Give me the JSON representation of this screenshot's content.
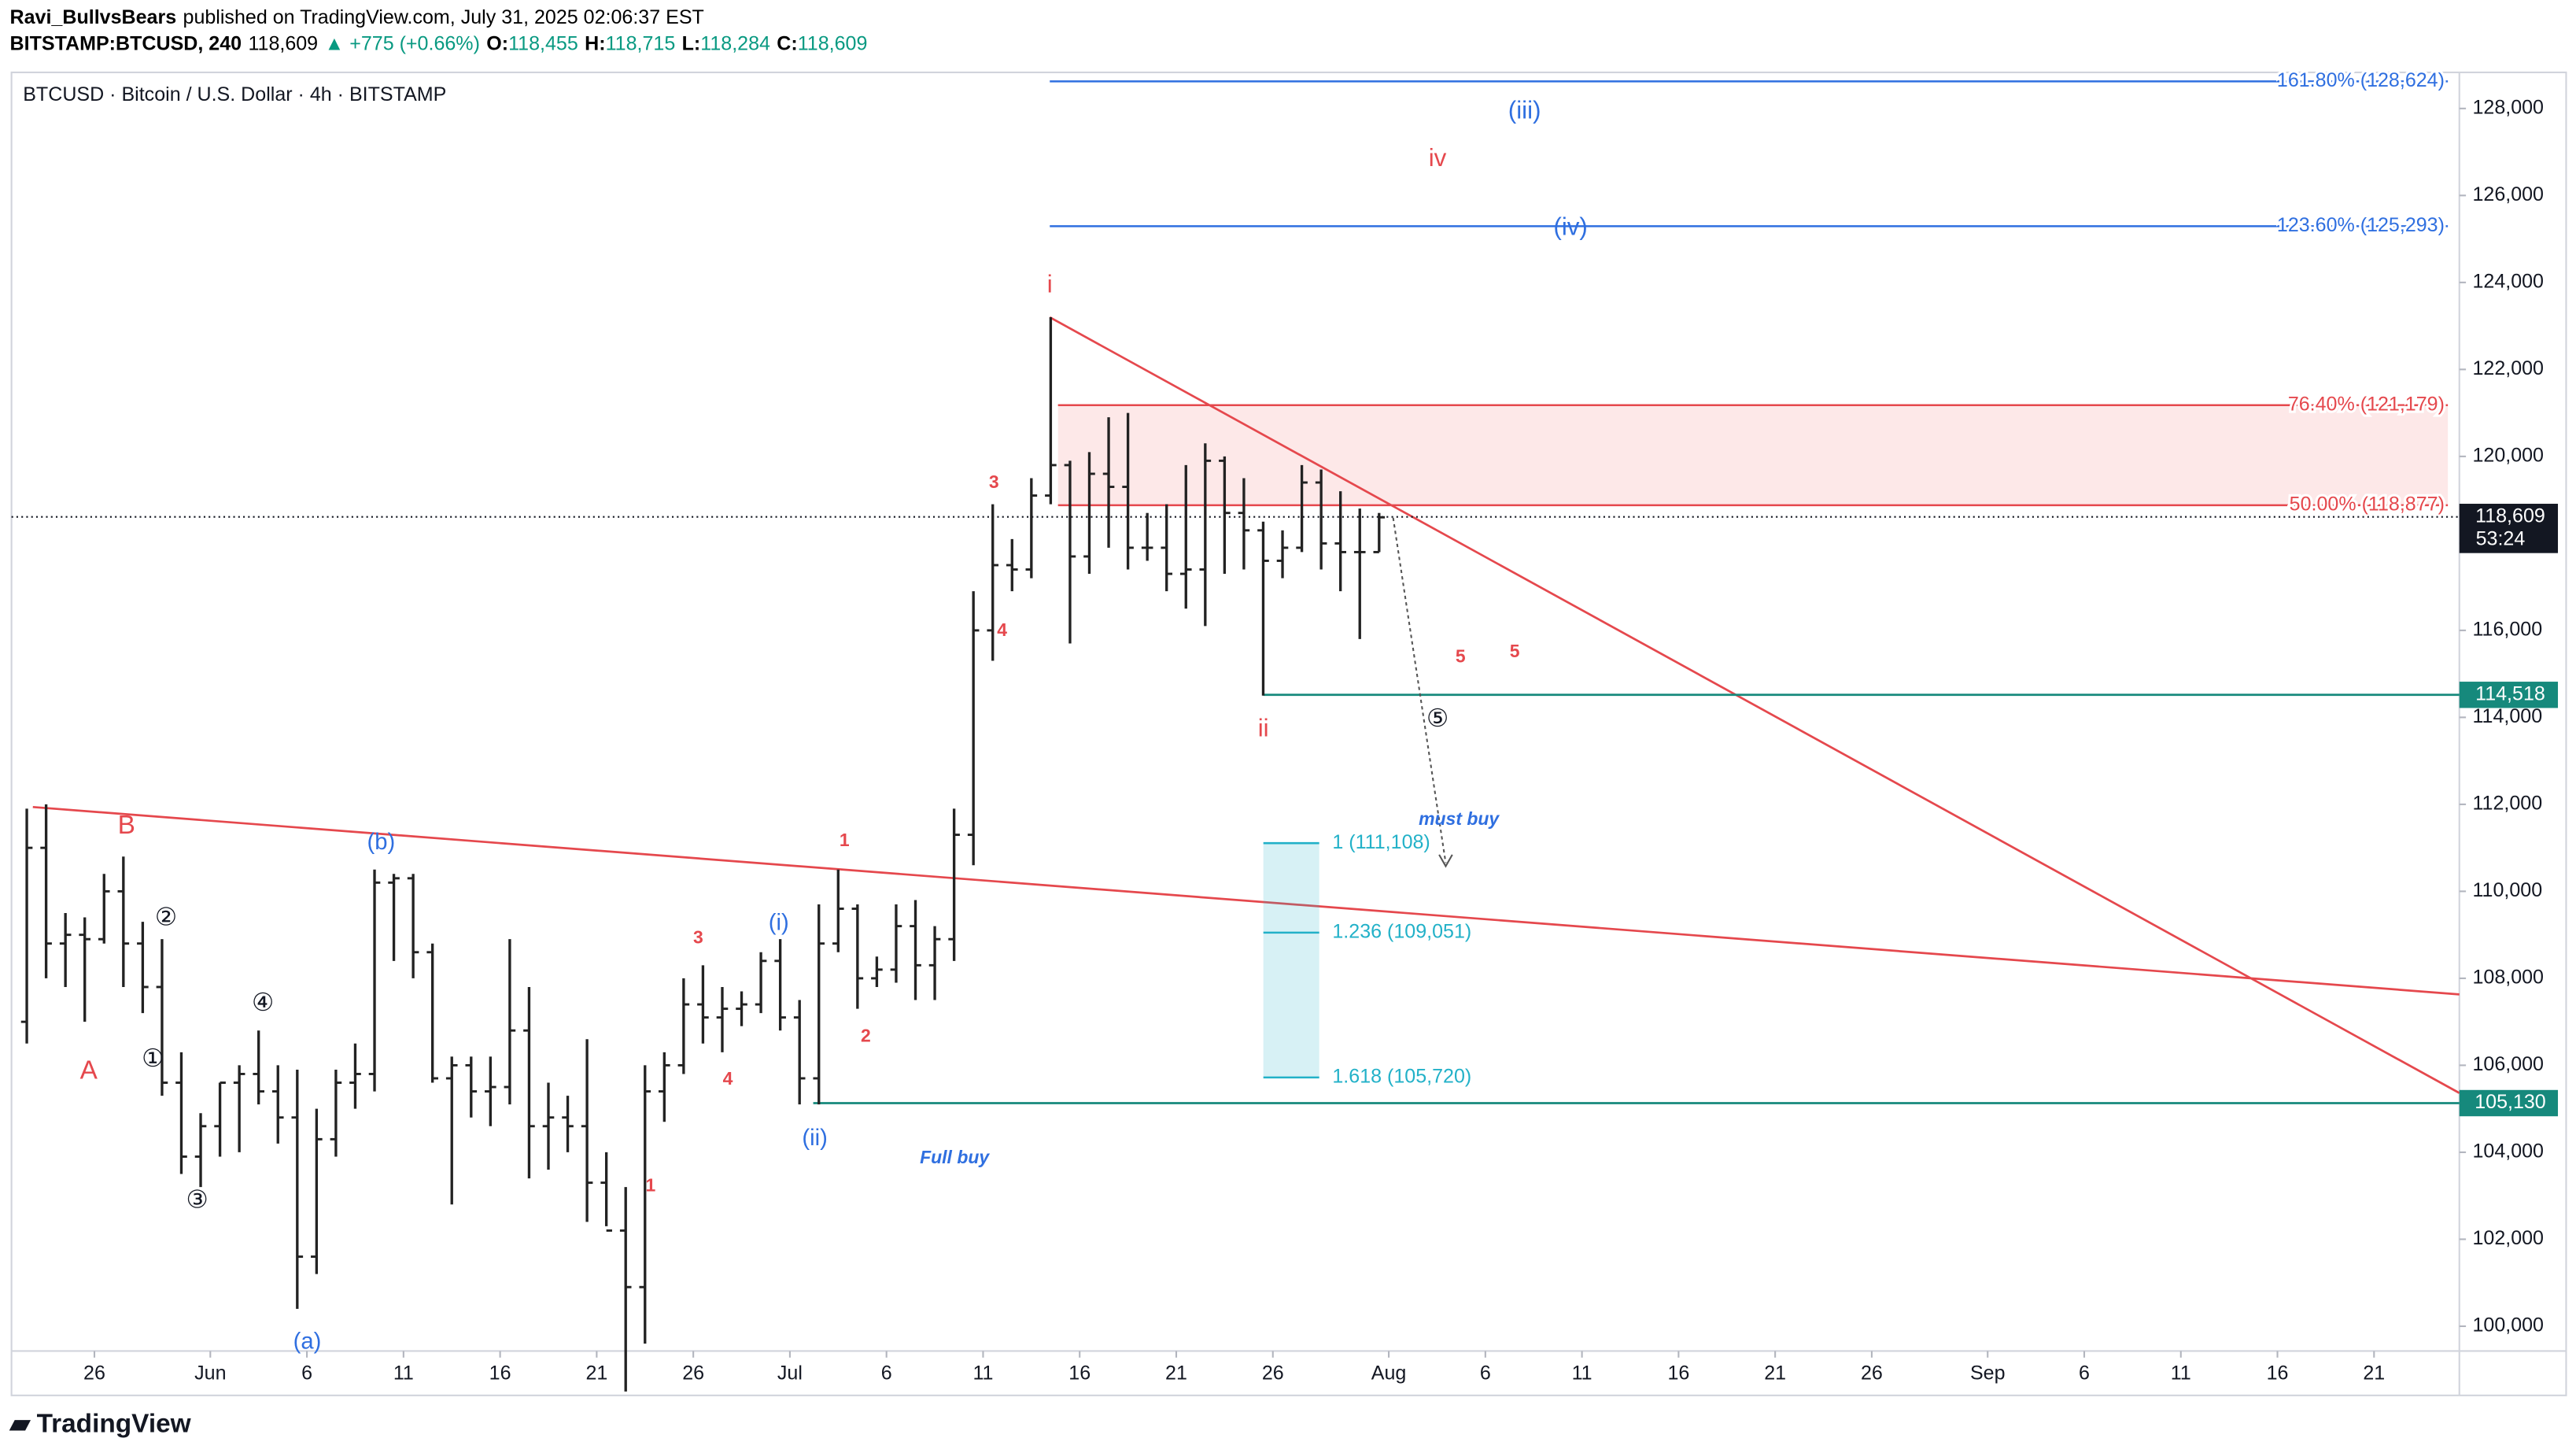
{
  "header": {
    "author": "Ravi_BullvsBears",
    "published": "published on TradingView.com, July 31, 2025 02:06:37 EST",
    "symbol": "BITSTAMP:BTCUSD, 240",
    "price": "118,609",
    "change": "▲ +775 (+0.66%)",
    "quote": [
      {
        "k": "O:",
        "v": "118,455"
      },
      {
        "k": "H:",
        "v": "118,715"
      },
      {
        "k": "L:",
        "v": "118,284"
      },
      {
        "k": "C:",
        "v": "118,609"
      }
    ]
  },
  "footer": {
    "brand": "TradingView"
  },
  "chart_data": {
    "type": "ohlc",
    "title": "BTCUSD · Bitcoin / U.S. Dollar · 4h · BITSTAMP",
    "x": [
      "2025-05-22",
      "2025-05-23",
      "2025-05-24",
      "2025-05-25",
      "2025-05-26",
      "2025-05-27",
      "2025-05-28",
      "2025-05-29",
      "2025-05-30",
      "2025-05-31",
      "2025-06-01",
      "2025-06-02",
      "2025-06-03",
      "2025-06-04",
      "2025-06-05",
      "2025-06-06",
      "2025-06-07",
      "2025-06-08",
      "2025-06-09",
      "2025-06-10",
      "2025-06-11",
      "2025-06-12",
      "2025-06-13",
      "2025-06-14",
      "2025-06-15",
      "2025-06-16",
      "2025-06-17",
      "2025-06-18",
      "2025-06-19",
      "2025-06-20",
      "2025-06-21",
      "2025-06-22",
      "2025-06-23",
      "2025-06-24",
      "2025-06-25",
      "2025-06-26",
      "2025-06-27",
      "2025-06-28",
      "2025-06-29",
      "2025-06-30",
      "2025-07-01",
      "2025-07-02",
      "2025-07-03",
      "2025-07-04",
      "2025-07-05",
      "2025-07-06",
      "2025-07-07",
      "2025-07-08",
      "2025-07-09",
      "2025-07-10",
      "2025-07-11",
      "2025-07-12",
      "2025-07-13",
      "2025-07-14",
      "2025-07-15",
      "2025-07-16",
      "2025-07-17",
      "2025-07-18",
      "2025-07-19",
      "2025-07-20",
      "2025-07-21",
      "2025-07-22",
      "2025-07-23",
      "2025-07-24",
      "2025-07-25",
      "2025-07-26",
      "2025-07-27",
      "2025-07-28",
      "2025-07-29",
      "2025-07-30",
      "2025-07-31"
    ],
    "open": [
      107000,
      111000,
      108800,
      109000,
      108900,
      110000,
      108800,
      107800,
      105600,
      103900,
      104600,
      105600,
      105800,
      105400,
      104800,
      101600,
      104300,
      105600,
      105800,
      110200,
      110300,
      108600,
      105700,
      106000,
      105400,
      105500,
      106800,
      104600,
      104800,
      104600,
      103300,
      102200,
      100900,
      105400,
      106000,
      107400,
      107100,
      107300,
      107400,
      108400,
      107100,
      105700,
      108800,
      109600,
      108000,
      108200,
      109200,
      108300,
      108900,
      111300,
      116000,
      117500,
      117400,
      119100,
      119800,
      117700,
      119600,
      119300,
      117900,
      117900,
      117300,
      117400,
      119900,
      118700,
      118300,
      117600,
      117900,
      119400,
      118000,
      117800,
      117800
    ],
    "high": [
      111900,
      112000,
      109500,
      109400,
      110400,
      110800,
      109300,
      108900,
      106300,
      104900,
      105600,
      106000,
      106800,
      106000,
      105900,
      105000,
      105900,
      106500,
      110500,
      110400,
      110400,
      108800,
      106200,
      106200,
      106200,
      108900,
      107800,
      105600,
      105300,
      106600,
      104000,
      103200,
      106000,
      106300,
      108000,
      108300,
      107800,
      107700,
      108600,
      108900,
      107500,
      109700,
      110500,
      109700,
      108500,
      109700,
      109800,
      109200,
      111900,
      116900,
      118900,
      118100,
      119500,
      123200,
      119900,
      120100,
      120900,
      121000,
      118700,
      118900,
      119800,
      120300,
      120000,
      119500,
      118500,
      118300,
      119800,
      119700,
      119200,
      118800,
      118700
    ],
    "low": [
      106500,
      108000,
      107800,
      107000,
      108800,
      107800,
      107200,
      105300,
      103500,
      103200,
      103900,
      104000,
      105100,
      104200,
      100400,
      101200,
      103900,
      105000,
      105400,
      108400,
      108000,
      105600,
      102800,
      104800,
      104600,
      105100,
      103400,
      103600,
      104000,
      102400,
      102300,
      98500,
      99600,
      104700,
      105800,
      106500,
      106300,
      106900,
      107200,
      106800,
      105100,
      105100,
      108600,
      107300,
      107800,
      107900,
      107500,
      107500,
      108400,
      110600,
      115300,
      116900,
      117200,
      118900,
      115700,
      117300,
      117900,
      117400,
      117600,
      116900,
      116500,
      116100,
      117300,
      117400,
      114500,
      117200,
      117800,
      117400,
      116900,
      115800,
      117800
    ],
    "close": [
      111000,
      108800,
      109000,
      108900,
      110000,
      108800,
      107800,
      105600,
      103900,
      104600,
      105600,
      105800,
      105400,
      104800,
      101600,
      104300,
      105600,
      105800,
      110200,
      110300,
      108600,
      105700,
      106000,
      105400,
      105500,
      106800,
      104600,
      104800,
      104600,
      103300,
      102200,
      100900,
      105400,
      106000,
      107400,
      107100,
      107300,
      107400,
      108400,
      107100,
      105700,
      108800,
      109600,
      108000,
      108200,
      109200,
      108300,
      108900,
      111300,
      116000,
      117500,
      117400,
      119100,
      119800,
      117700,
      119600,
      119300,
      117900,
      117900,
      117300,
      117400,
      119900,
      118700,
      118300,
      117600,
      117900,
      119400,
      118000,
      117800,
      117800,
      118600
    ],
    "color": "#222222",
    "xlim": [
      "2025-05-21T17:00",
      "2025-09-25T10:00"
    ],
    "xticks": [
      {
        "value": "2025-05-26",
        "label": "26"
      },
      {
        "value": "2025-06-01",
        "label": "Jun"
      },
      {
        "value": "2025-06-06",
        "label": "6"
      },
      {
        "value": "2025-06-11",
        "label": "11"
      },
      {
        "value": "2025-06-16",
        "label": "16"
      },
      {
        "value": "2025-06-21",
        "label": "21"
      },
      {
        "value": "2025-06-26",
        "label": "26"
      },
      {
        "value": "2025-07-01",
        "label": "Jul"
      },
      {
        "value": "2025-07-06",
        "label": "6"
      },
      {
        "value": "2025-07-11",
        "label": "11"
      },
      {
        "value": "2025-07-16",
        "label": "16"
      },
      {
        "value": "2025-07-21",
        "label": "21"
      },
      {
        "value": "2025-07-26",
        "label": "26"
      },
      {
        "value": "2025-08-01",
        "label": "Aug"
      },
      {
        "value": "2025-08-06",
        "label": "6"
      },
      {
        "value": "2025-08-11",
        "label": "11"
      },
      {
        "value": "2025-08-16",
        "label": "16"
      },
      {
        "value": "2025-08-21",
        "label": "21"
      },
      {
        "value": "2025-08-26",
        "label": "26"
      },
      {
        "value": "2025-09-01",
        "label": "Sep"
      },
      {
        "value": "2025-09-06",
        "label": "6"
      },
      {
        "value": "2025-09-11",
        "label": "11"
      },
      {
        "value": "2025-09-16",
        "label": "16"
      },
      {
        "value": "2025-09-21",
        "label": "21"
      }
    ],
    "ylim": [
      99430,
      128830
    ],
    "yticks": [
      {
        "value": 100000,
        "label": "100,000"
      },
      {
        "value": 102000,
        "label": "102,000"
      },
      {
        "value": 104000,
        "label": "104,000"
      },
      {
        "value": 106000,
        "label": "106,000"
      },
      {
        "value": 108000,
        "label": "108,000"
      },
      {
        "value": 110000,
        "label": "110,000"
      },
      {
        "value": 112000,
        "label": "112,000"
      },
      {
        "value": 114000,
        "label": "114,000"
      },
      {
        "value": 116000,
        "label": "116,000"
      },
      {
        "value": 118000,
        "label": "118,000"
      },
      {
        "value": 120000,
        "label": "120,000"
      },
      {
        "value": 122000,
        "label": "122,000"
      },
      {
        "value": 124000,
        "label": "124,000"
      },
      {
        "value": 126000,
        "label": "126,000"
      },
      {
        "value": 128000,
        "label": "128,000"
      }
    ],
    "grid": false,
    "last_price": {
      "value": 118609,
      "label": "118,609",
      "countdown": "53:24"
    },
    "support_levels": [
      {
        "value": 114518,
        "label": "114,518",
        "color": "#16897c"
      },
      {
        "value": 105130,
        "label": "105,130",
        "color": "#16897c"
      }
    ],
    "fib_levels": [
      {
        "value": 128624,
        "label": "161.80% (128,624)",
        "color": "#2f6fe0"
      },
      {
        "value": 125293,
        "label": "123.60% (125,293)",
        "color": "#2f6fe0"
      },
      {
        "value": 121179,
        "label": "76.40% (121,179)",
        "color": "#e5484d"
      },
      {
        "value": 118877,
        "label": "50.00% (118,877)",
        "color": "#e5484d"
      }
    ],
    "zone_color": "#fde8e8",
    "extension_levels": [
      {
        "value": 111108,
        "label": "1 (111,108)"
      },
      {
        "value": 109051,
        "label": "1.236 (109,051)"
      },
      {
        "value": 105720,
        "label": "1.618 (105,720)"
      }
    ],
    "extension_color": "#22b1c8",
    "trendline_color": "#e5484d",
    "annotations": [
      "B",
      "A",
      "(b)",
      "(a)",
      "②",
      "④",
      "①",
      "③",
      "3",
      "4",
      "1",
      "(i)",
      "(ii)",
      "1",
      "2",
      "3",
      "4",
      "i",
      "ii",
      "iv",
      "(iii)",
      "(iv)",
      "5",
      "5",
      "⑤",
      "must buy",
      "Full buy"
    ]
  }
}
